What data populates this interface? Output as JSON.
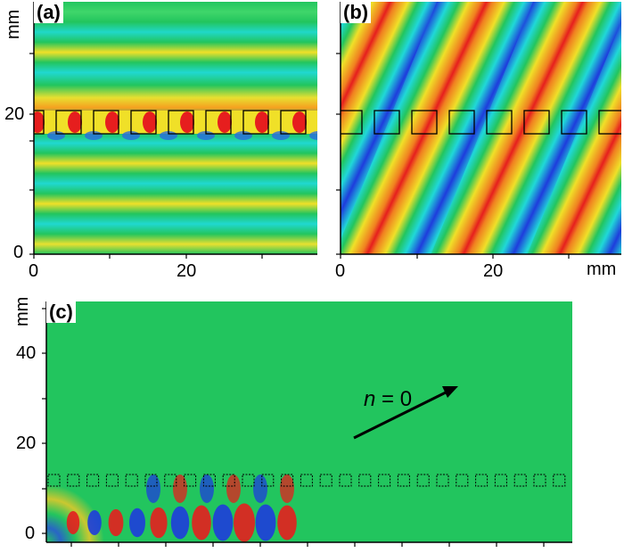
{
  "panels": {
    "a": {
      "label": "(a)"
    },
    "b": {
      "label": "(b)"
    },
    "c": {
      "label": "(c)"
    }
  },
  "axes": {
    "ab_y_unit": "mm",
    "ab_x_unit": "mm",
    "c_y_unit": "mm",
    "a_y_ticks": [
      "20",
      "0"
    ],
    "a_x_ticks": [
      "0",
      "20"
    ],
    "b_x_ticks": [
      "0",
      "20"
    ],
    "c_y_ticks": [
      "40",
      "20",
      "0"
    ]
  },
  "annotation": {
    "n_symbol": "n",
    "n_rest": " = 0"
  },
  "colors": {
    "background_field": "#22c55e",
    "positive": "#e61e1e",
    "negative": "#1e3cdc",
    "highlight": "#f0e028",
    "cyan": "#20d8d8"
  }
}
